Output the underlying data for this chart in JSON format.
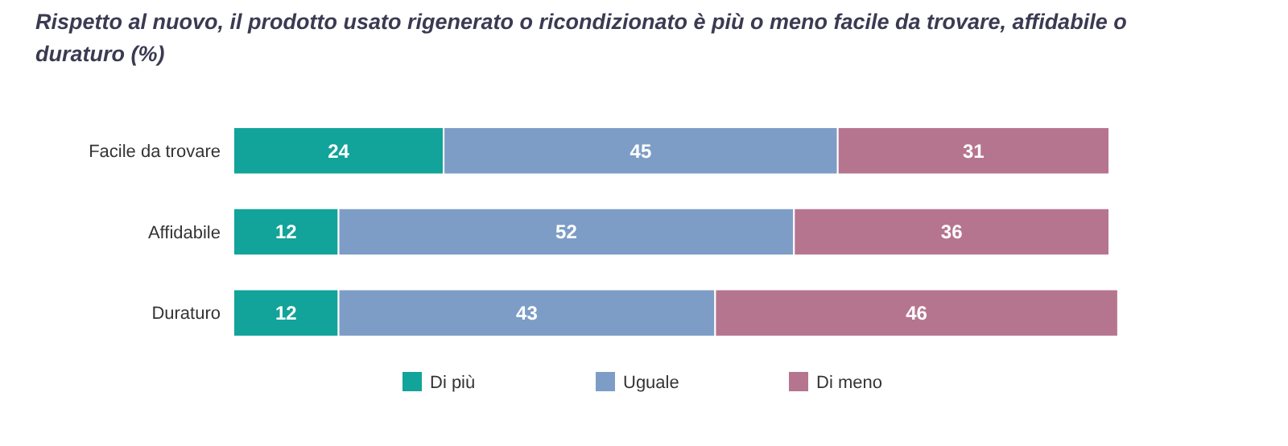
{
  "chart_data": {
    "type": "bar",
    "orientation": "horizontal",
    "stacked": true,
    "title": "Rispetto al nuovo, il prodotto usato rigenerato o ricondizionato è più o meno facile da trovare, affidabile o duraturo (%)",
    "categories": [
      "Facile da trovare",
      "Affidabile",
      "Duraturo"
    ],
    "series": [
      {
        "name": "Di più",
        "color": "#12a39a",
        "values": [
          24,
          12,
          12
        ]
      },
      {
        "name": "Uguale",
        "color": "#7d9dc6",
        "values": [
          45,
          52,
          43
        ]
      },
      {
        "name": "Di meno",
        "color": "#b6758f",
        "values": [
          31,
          36,
          46
        ]
      }
    ],
    "data_labels": true,
    "legend": "bottom"
  }
}
